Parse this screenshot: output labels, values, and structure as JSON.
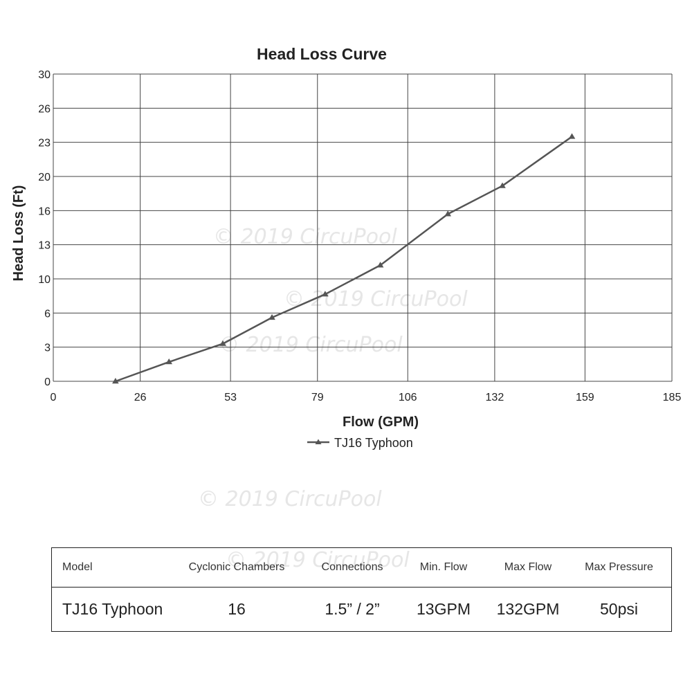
{
  "chart_data": {
    "type": "line",
    "title": "Head Loss Curve",
    "xlabel": "Flow (GPM)",
    "ylabel": "Head Loss (Ft)",
    "xlim": [
      0,
      185
    ],
    "ylim": [
      0,
      30
    ],
    "x_ticks": [
      0,
      26,
      53,
      79,
      106,
      132,
      159,
      185
    ],
    "y_ticks": [
      0,
      3,
      6,
      10,
      13,
      16,
      20,
      23,
      26,
      30
    ],
    "grid": true,
    "legend_position": "bottom",
    "series": [
      {
        "name": "TJ16 Typhoon",
        "color": "#555555",
        "marker": "triangle",
        "x": [
          18.6,
          34.6,
          50.7,
          65.4,
          81.3,
          97.8,
          118,
          134.3,
          155.1
        ],
        "y": [
          0,
          1.7,
          3.3,
          5.6,
          8.2,
          11.2,
          15.7,
          18.9,
          23.5
        ]
      }
    ]
  },
  "watermarks": [
    "© 2019 CircuPool",
    "© 2019 CircuPool",
    "© 2019 CircuPool",
    "© 2019 CircuPool",
    "© 2019 CircuPool"
  ],
  "specs": {
    "headers": [
      "Model",
      "Cyclonic Chambers",
      "Connections",
      "Min. Flow",
      "Max Flow",
      "Max Pressure"
    ],
    "row": [
      "TJ16 Typhoon",
      "16",
      "1.5” / 2”",
      "13GPM",
      "132GPM",
      "50psi"
    ]
  }
}
